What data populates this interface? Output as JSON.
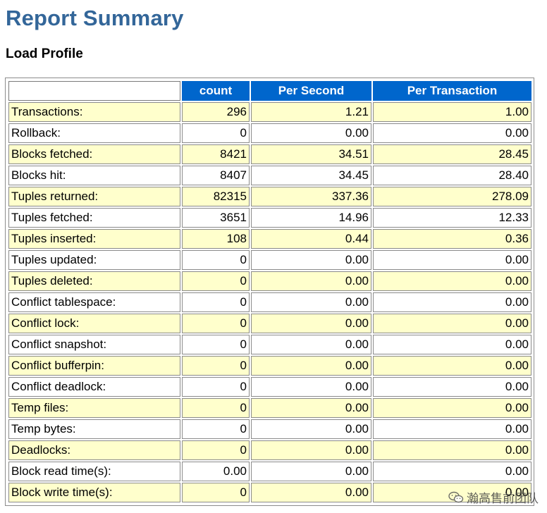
{
  "title": "Report Summary",
  "section": "Load Profile",
  "table": {
    "headers": [
      "",
      "count",
      "Per Second",
      "Per Transaction"
    ],
    "rows": [
      {
        "label": "Transactions:",
        "count": "296",
        "per_second": "1.21",
        "per_transaction": "1.00"
      },
      {
        "label": "Rollback:",
        "count": "0",
        "per_second": "0.00",
        "per_transaction": "0.00"
      },
      {
        "label": "Blocks fetched:",
        "count": "8421",
        "per_second": "34.51",
        "per_transaction": "28.45"
      },
      {
        "label": "Blocks hit:",
        "count": "8407",
        "per_second": "34.45",
        "per_transaction": "28.40"
      },
      {
        "label": "Tuples returned:",
        "count": "82315",
        "per_second": "337.36",
        "per_transaction": "278.09"
      },
      {
        "label": "Tuples fetched:",
        "count": "3651",
        "per_second": "14.96",
        "per_transaction": "12.33"
      },
      {
        "label": "Tuples inserted:",
        "count": "108",
        "per_second": "0.44",
        "per_transaction": "0.36"
      },
      {
        "label": "Tuples updated:",
        "count": "0",
        "per_second": "0.00",
        "per_transaction": "0.00"
      },
      {
        "label": "Tuples deleted:",
        "count": "0",
        "per_second": "0.00",
        "per_transaction": "0.00"
      },
      {
        "label": "Conflict tablespace:",
        "count": "0",
        "per_second": "0.00",
        "per_transaction": "0.00"
      },
      {
        "label": "Conflict lock:",
        "count": "0",
        "per_second": "0.00",
        "per_transaction": "0.00"
      },
      {
        "label": "Conflict snapshot:",
        "count": "0",
        "per_second": "0.00",
        "per_transaction": "0.00"
      },
      {
        "label": "Conflict bufferpin:",
        "count": "0",
        "per_second": "0.00",
        "per_transaction": "0.00"
      },
      {
        "label": "Conflict deadlock:",
        "count": "0",
        "per_second": "0.00",
        "per_transaction": "0.00"
      },
      {
        "label": "Temp files:",
        "count": "0",
        "per_second": "0.00",
        "per_transaction": "0.00"
      },
      {
        "label": "Temp bytes:",
        "count": "0",
        "per_second": "0.00",
        "per_transaction": "0.00"
      },
      {
        "label": "Deadlocks:",
        "count": "0",
        "per_second": "0.00",
        "per_transaction": "0.00"
      },
      {
        "label": "Block read time(s):",
        "count": "0.00",
        "per_second": "0.00",
        "per_transaction": "0.00"
      },
      {
        "label": "Block write time(s):",
        "count": "0",
        "per_second": "0.00",
        "per_transaction": "0.00"
      }
    ]
  },
  "watermark": {
    "icon": "wechat-icon",
    "text": "瀚高售前团队"
  },
  "colors": {
    "title": "#336699",
    "header_bg": "#0066cc",
    "alt_row_bg": "#ffffcc"
  }
}
